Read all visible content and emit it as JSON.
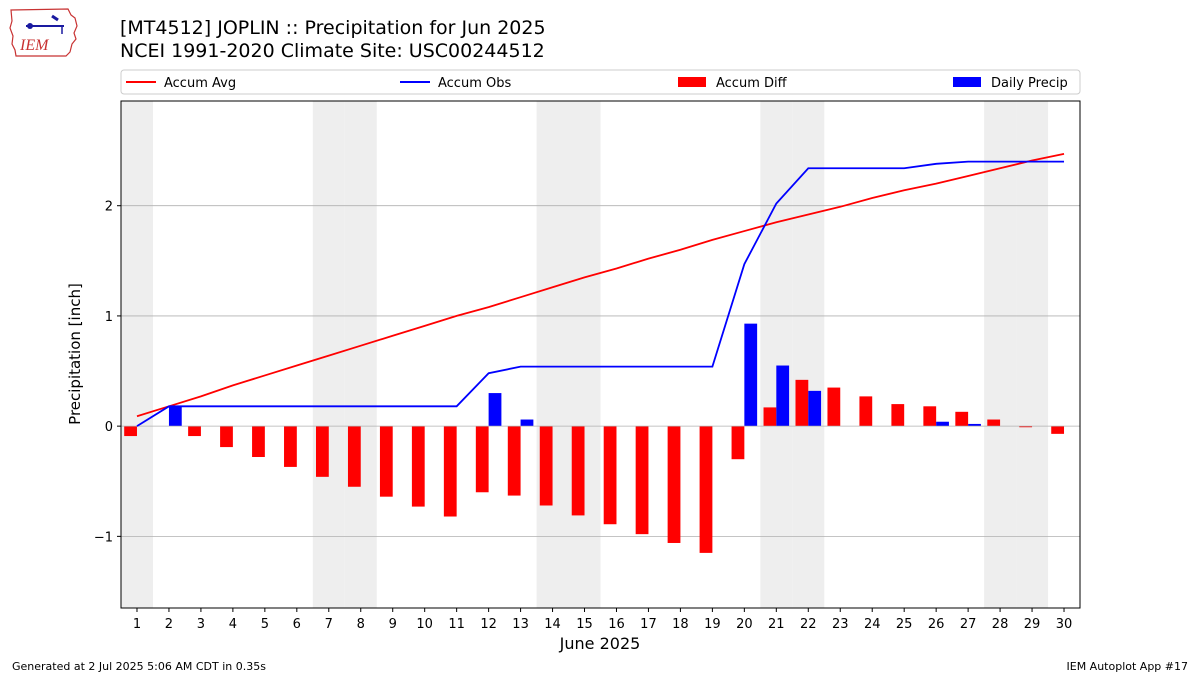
{
  "header": {
    "title_line1": "[MT4512] JOPLIN :: Precipitation for Jun 2025",
    "title_line2": "NCEI 1991-2020 Climate Site: USC00244512"
  },
  "logo": {
    "text": "IEM"
  },
  "footer": {
    "generated": "Generated at 2 Jul 2025 5:06 AM CDT in 0.35s",
    "app": "IEM Autoplot App #17"
  },
  "colors": {
    "avg": "#ff0000",
    "obs": "#0000ff",
    "diff": "#ff0000",
    "daily": "#0000ff",
    "weekend": "#eeeeee",
    "grid": "#b0b0b0"
  },
  "chart_data": {
    "type": "bar",
    "xlabel": "June 2025",
    "ylabel": "Precipitation [inch]",
    "ylim": [
      -1.65,
      2.95
    ],
    "yticks": [
      -1,
      0,
      1,
      2
    ],
    "ytick_labels": [
      "−1",
      "0",
      "1",
      "2"
    ],
    "grid": "horizontal",
    "legend_placement": "top",
    "x": [
      1,
      2,
      3,
      4,
      5,
      6,
      7,
      8,
      9,
      10,
      11,
      12,
      13,
      14,
      15,
      16,
      17,
      18,
      19,
      20,
      21,
      22,
      23,
      24,
      25,
      26,
      27,
      28,
      29,
      30
    ],
    "weekend_days": [
      1,
      7,
      8,
      14,
      15,
      21,
      22,
      28,
      29
    ],
    "series": [
      {
        "name": "Accum Avg",
        "kind": "line",
        "values": [
          0.09,
          0.18,
          0.27,
          0.37,
          0.46,
          0.55,
          0.64,
          0.73,
          0.82,
          0.91,
          1.0,
          1.08,
          1.17,
          1.26,
          1.35,
          1.43,
          1.52,
          1.6,
          1.69,
          1.77,
          1.85,
          1.92,
          1.99,
          2.07,
          2.14,
          2.2,
          2.27,
          2.34,
          2.41,
          2.47
        ]
      },
      {
        "name": "Accum Obs",
        "kind": "line",
        "values": [
          0.0,
          0.18,
          0.18,
          0.18,
          0.18,
          0.18,
          0.18,
          0.18,
          0.18,
          0.18,
          0.18,
          0.48,
          0.54,
          0.54,
          0.54,
          0.54,
          0.54,
          0.54,
          0.54,
          1.47,
          2.02,
          2.34,
          2.34,
          2.34,
          2.34,
          2.38,
          2.4,
          2.4,
          2.4,
          2.4
        ]
      },
      {
        "name": "Accum Diff",
        "kind": "bar",
        "values": [
          -0.09,
          0.0,
          -0.09,
          -0.19,
          -0.28,
          -0.37,
          -0.46,
          -0.55,
          -0.64,
          -0.73,
          -0.82,
          -0.6,
          -0.63,
          -0.72,
          -0.81,
          -0.89,
          -0.98,
          -1.06,
          -1.15,
          -0.3,
          0.17,
          0.42,
          0.35,
          0.27,
          0.2,
          0.18,
          0.13,
          0.06,
          -0.01,
          -0.07
        ]
      },
      {
        "name": "Daily Precip",
        "kind": "bar",
        "values": [
          0.0,
          0.18,
          0.0,
          0.0,
          0.0,
          0.0,
          0.0,
          0.0,
          0.0,
          0.0,
          0.0,
          0.3,
          0.06,
          0.0,
          0.0,
          0.0,
          0.0,
          0.0,
          0.0,
          0.93,
          0.55,
          0.32,
          0.0,
          0.0,
          0.0,
          0.04,
          0.02,
          0.0,
          0.0,
          0.0
        ]
      }
    ]
  }
}
